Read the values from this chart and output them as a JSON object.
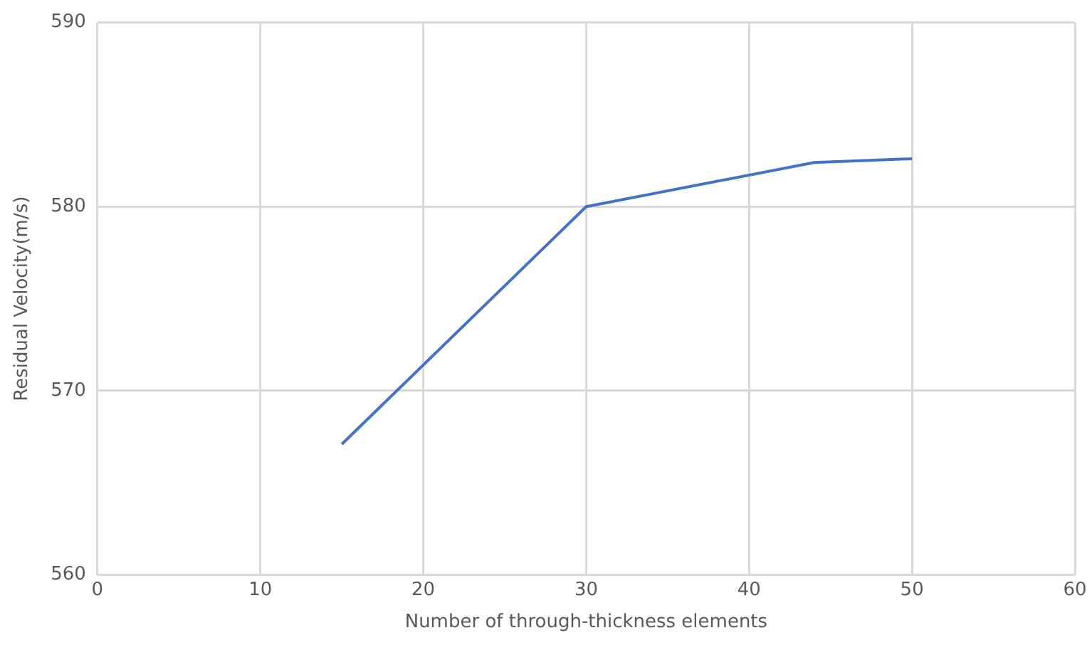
{
  "chart_data": {
    "type": "line",
    "xlabel": "Number of through-thickness elements",
    "ylabel": "Residual Velocity(m/s)",
    "x": [
      15,
      30,
      44,
      50
    ],
    "series": [
      {
        "color": "#4472c4",
        "values": [
          567.1,
          580,
          582.4,
          582.6
        ]
      }
    ],
    "xlim": [
      0,
      60
    ],
    "xticks": [
      0,
      10,
      20,
      30,
      40,
      50,
      60
    ],
    "ylim": [
      560,
      590
    ],
    "yticks": [
      560,
      570,
      580,
      590
    ],
    "grid": true,
    "legend": false,
    "marker": "none",
    "line_style": "solid"
  }
}
